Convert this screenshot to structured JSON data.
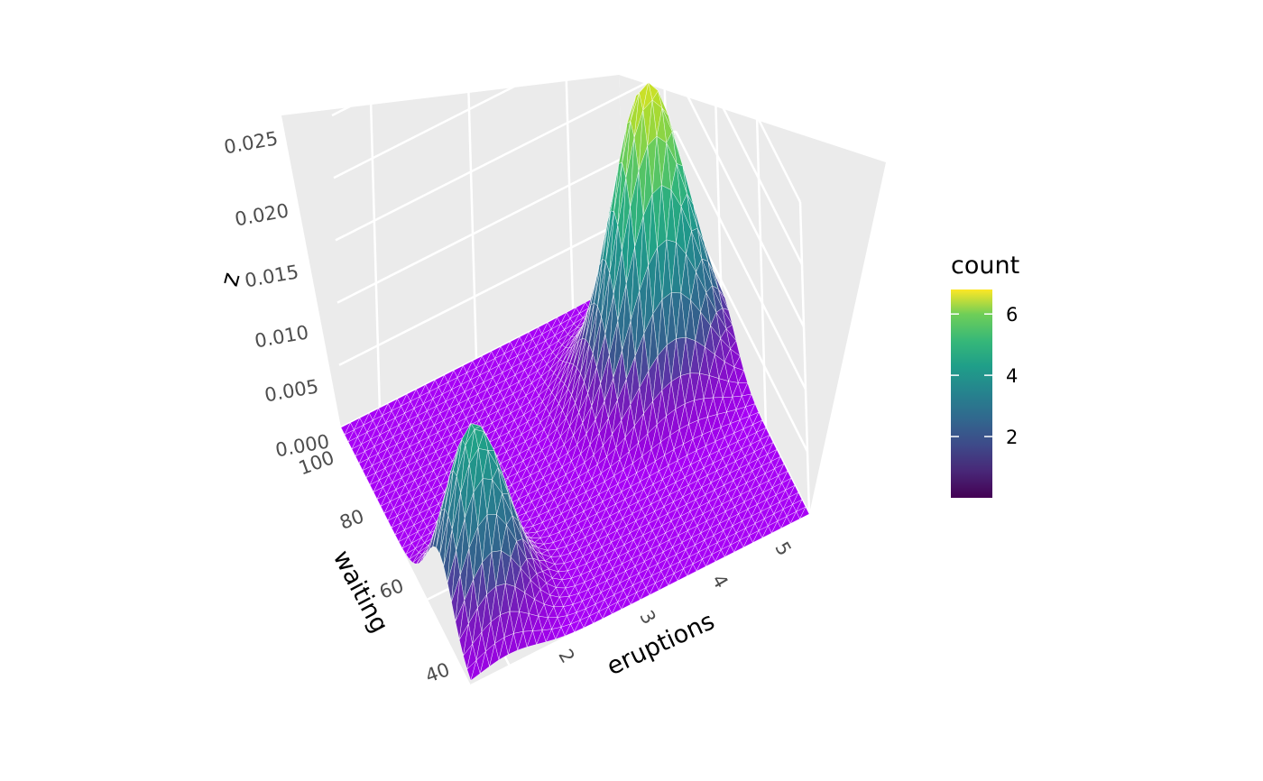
{
  "chart_data": {
    "type": "surface",
    "x_label": "eruptions",
    "y_label": "waiting",
    "z_label": "z",
    "x_range": [
      1.6,
      5.1
    ],
    "y_range": [
      40,
      100
    ],
    "z_range": [
      0,
      0.025
    ],
    "x_ticks": [
      "2",
      "3",
      "4",
      "5"
    ],
    "y_ticks": [
      "40",
      "60",
      "80",
      "100"
    ],
    "z_ticks": [
      "0.000",
      "0.005",
      "0.010",
      "0.015",
      "0.020",
      "0.025"
    ],
    "peaks": [
      {
        "eruptions": 2.0,
        "waiting": 54,
        "z": 0.0145
      },
      {
        "eruptions": 4.4,
        "waiting": 80,
        "z": 0.0235
      }
    ],
    "grid": true,
    "colorscale": "viridis",
    "flat_color": "#a700f5",
    "legend": {
      "title": "count",
      "range": [
        0,
        6.8
      ],
      "ticks": [
        "2",
        "4",
        "6"
      ],
      "position": "right"
    }
  }
}
